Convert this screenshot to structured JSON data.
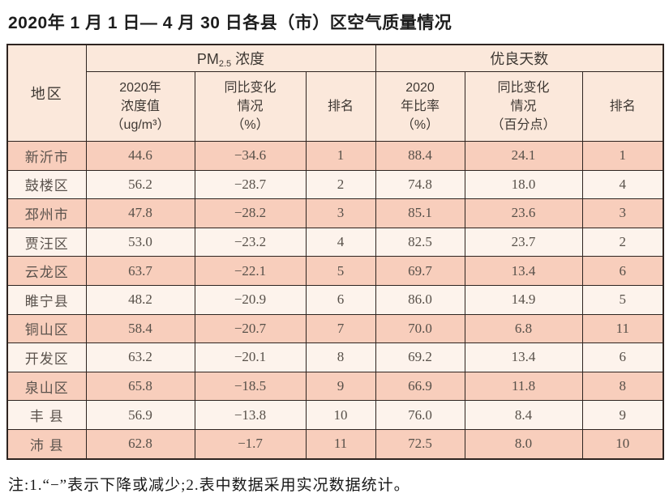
{
  "title": "2020年 1 月 1 日— 4 月 30 日各县（市）区空气质量情况",
  "note": "注:1.“−”表示下降或减少;2.表中数据采用实况数据统计。",
  "colors": {
    "row_odd_bg": "#f8cebc",
    "row_even_bg": "#fdf3ec",
    "header_bg": "#fbe8db",
    "border": "#2e2420"
  },
  "table": {
    "region_header": "地区",
    "group_pm25": {
      "prefix": "PM",
      "sub": "2.5",
      "suffix": "浓度"
    },
    "group_good_days": "优良天数",
    "sub_headers": {
      "pm_value": "2020年\n浓度值\n（ug/m³）",
      "pm_change": "同比变化\n情况\n（%）",
      "pm_rank": "排名",
      "good_rate": "2020\n年比率\n（%）",
      "good_change": "同比变化\n情况\n（百分点）",
      "good_rank": "排名"
    },
    "rows": [
      {
        "region": "新沂市",
        "pm_value": "44.6",
        "pm_change": "−34.6",
        "pm_rank": "1",
        "good_rate": "88.4",
        "good_change": "24.1",
        "good_rank": "1"
      },
      {
        "region": "鼓楼区",
        "pm_value": "56.2",
        "pm_change": "−28.7",
        "pm_rank": "2",
        "good_rate": "74.8",
        "good_change": "18.0",
        "good_rank": "4"
      },
      {
        "region": "邳州市",
        "pm_value": "47.8",
        "pm_change": "−28.2",
        "pm_rank": "3",
        "good_rate": "85.1",
        "good_change": "23.6",
        "good_rank": "3"
      },
      {
        "region": "贾汪区",
        "pm_value": "53.0",
        "pm_change": "−23.2",
        "pm_rank": "4",
        "good_rate": "82.5",
        "good_change": "23.7",
        "good_rank": "2"
      },
      {
        "region": "云龙区",
        "pm_value": "63.7",
        "pm_change": "−22.1",
        "pm_rank": "5",
        "good_rate": "69.7",
        "good_change": "13.4",
        "good_rank": "6"
      },
      {
        "region": "睢宁县",
        "pm_value": "48.2",
        "pm_change": "−20.9",
        "pm_rank": "6",
        "good_rate": "86.0",
        "good_change": "14.9",
        "good_rank": "5"
      },
      {
        "region": "铜山区",
        "pm_value": "58.4",
        "pm_change": "−20.7",
        "pm_rank": "7",
        "good_rate": "70.0",
        "good_change": "6.8",
        "good_rank": "11"
      },
      {
        "region": "开发区",
        "pm_value": "63.2",
        "pm_change": "−20.1",
        "pm_rank": "8",
        "good_rate": "69.2",
        "good_change": "13.4",
        "good_rank": "6"
      },
      {
        "region": "泉山区",
        "pm_value": "65.8",
        "pm_change": "−18.5",
        "pm_rank": "9",
        "good_rate": "66.9",
        "good_change": "11.8",
        "good_rank": "8"
      },
      {
        "region": "丰 县",
        "pm_value": "56.9",
        "pm_change": "−13.8",
        "pm_rank": "10",
        "good_rate": "76.0",
        "good_change": "8.4",
        "good_rank": "9"
      },
      {
        "region": "沛 县",
        "pm_value": "62.8",
        "pm_change": "−1.7",
        "pm_rank": "11",
        "good_rate": "72.5",
        "good_change": "8.0",
        "good_rank": "10"
      }
    ]
  }
}
